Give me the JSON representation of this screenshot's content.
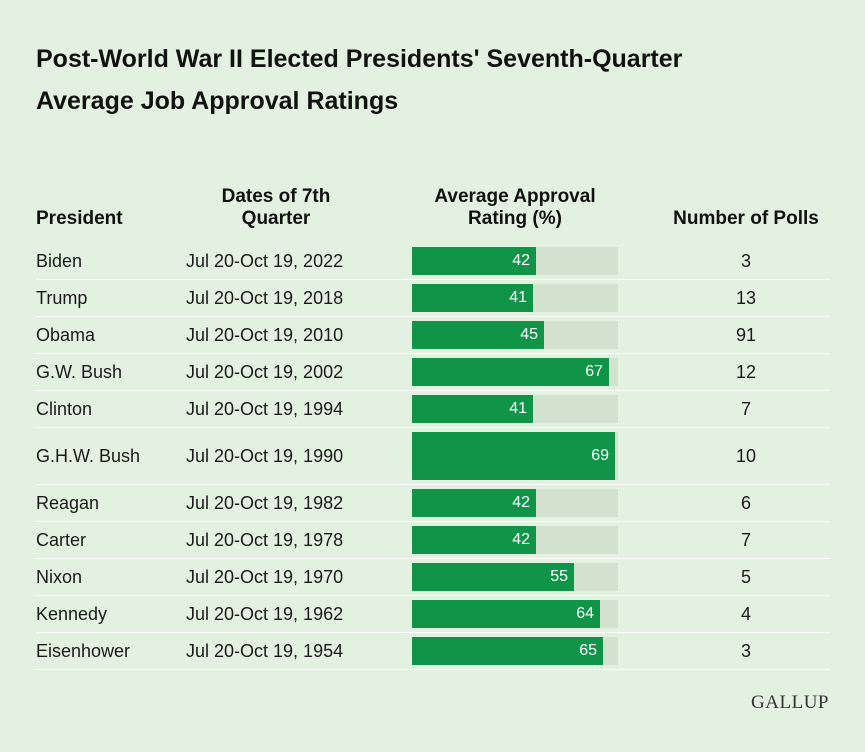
{
  "title_line1": "Post-World War II Elected Presidents' Seventh-Quarter",
  "title_line2": "Average Job Approval Ratings",
  "headers": {
    "president": "President",
    "dates_line1": "Dates of 7th",
    "dates_line2": "Quarter",
    "rating_line1": "Average Approval",
    "rating_line2": "Rating (%)",
    "polls": "Number of Polls"
  },
  "colors": {
    "bar": "#0f9448",
    "track": "#d2e2cf",
    "background": "#e3f1e0"
  },
  "logo": "GALLUP",
  "chart_data": {
    "type": "table",
    "title": "Post-World War II Elected Presidents' Seventh-Quarter Average Job Approval Ratings",
    "columns": [
      "President",
      "Dates of 7th Quarter",
      "Average Approval Rating (%)",
      "Number of Polls"
    ],
    "bar_max": 70,
    "rows": [
      {
        "president": "Biden",
        "dates": "Jul 20-Oct 19, 2022",
        "rating": 42,
        "polls": 3
      },
      {
        "president": "Trump",
        "dates": "Jul 20-Oct 19, 2018",
        "rating": 41,
        "polls": 13
      },
      {
        "president": "Obama",
        "dates": "Jul 20-Oct 19, 2010",
        "rating": 45,
        "polls": 91
      },
      {
        "president": "G.W. Bush",
        "dates": "Jul 20-Oct 19, 2002",
        "rating": 67,
        "polls": 12
      },
      {
        "president": "Clinton",
        "dates": "Jul 20-Oct 19, 1994",
        "rating": 41,
        "polls": 7
      },
      {
        "president": "G.H.W. Bush",
        "dates": "Jul 20-Oct 19, 1990",
        "rating": 69,
        "polls": 10
      },
      {
        "president": "Reagan",
        "dates": "Jul 20-Oct 19, 1982",
        "rating": 42,
        "polls": 6
      },
      {
        "president": "Carter",
        "dates": "Jul 20-Oct 19, 1978",
        "rating": 42,
        "polls": 7
      },
      {
        "president": "Nixon",
        "dates": "Jul 20-Oct 19, 1970",
        "rating": 55,
        "polls": 5
      },
      {
        "president": "Kennedy",
        "dates": "Jul 20-Oct 19, 1962",
        "rating": 64,
        "polls": 4
      },
      {
        "president": "Eisenhower",
        "dates": "Jul 20-Oct 19, 1954",
        "rating": 65,
        "polls": 3
      }
    ]
  }
}
